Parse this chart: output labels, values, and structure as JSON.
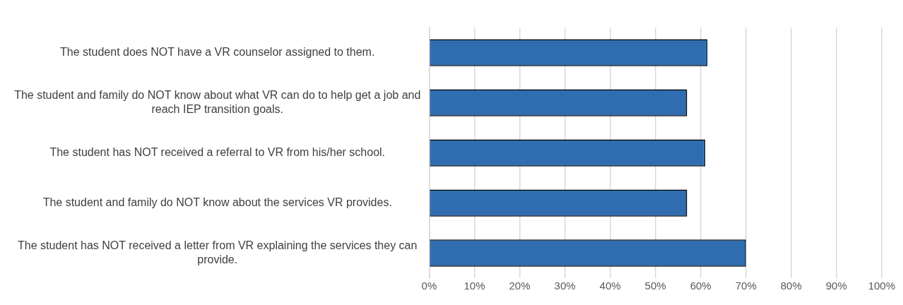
{
  "chart_data": {
    "type": "bar",
    "orientation": "horizontal",
    "categories": [
      "The student does NOT have a VR counselor assigned to them.",
      "The student and family do NOT know about what VR can do to help get a job and reach IEP transition goals.",
      "The student has NOT received a referral to VR from his/her school.",
      "The student and family do NOT know about the services VR provides.",
      "The student has NOT received a letter from VR explaining the services they can provide."
    ],
    "values": [
      61.5,
      57,
      61,
      57,
      70
    ],
    "color": "#2f6db0",
    "xlim": [
      0,
      100
    ],
    "xticks": [
      {
        "value": 0,
        "label": "0%"
      },
      {
        "value": 10,
        "label": "10%"
      },
      {
        "value": 20,
        "label": "20%"
      },
      {
        "value": 30,
        "label": "30%"
      },
      {
        "value": 40,
        "label": "40%"
      },
      {
        "value": 50,
        "label": "50%"
      },
      {
        "value": 60,
        "label": "60%"
      },
      {
        "value": 70,
        "label": "70%"
      },
      {
        "value": 80,
        "label": "80%"
      },
      {
        "value": 90,
        "label": "90%"
      },
      {
        "value": 100,
        "label": "100%"
      }
    ],
    "grid": "x",
    "legend": false
  }
}
